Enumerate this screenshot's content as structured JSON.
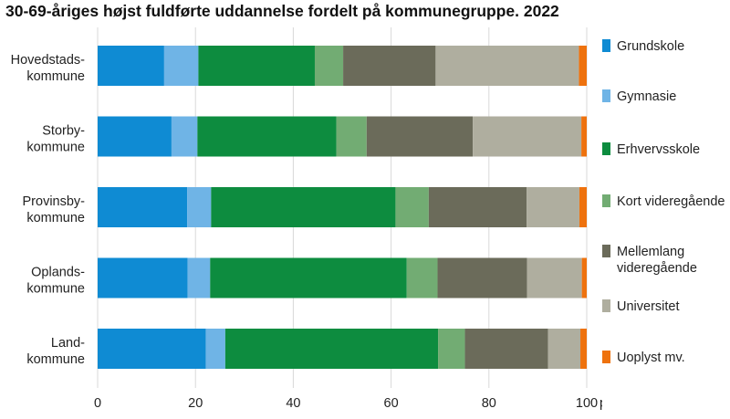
{
  "chart_data": {
    "type": "bar",
    "orientation": "horizontal",
    "stacked": true,
    "title": "30-69-åriges højst fuldførte uddannelse fordelt på kommunegruppe. 2022",
    "x_unit_label": "ptc.",
    "xlim": [
      0,
      100
    ],
    "x_ticks": [
      0,
      20,
      40,
      60,
      80,
      100
    ],
    "grid": "vertical",
    "legend_position": "right",
    "categories": [
      [
        "Hovedstads-",
        "kommune"
      ],
      [
        "Storby-",
        "kommune"
      ],
      [
        "Provinsby-",
        "kommune"
      ],
      [
        "Oplands-",
        "kommune"
      ],
      [
        "Land-",
        "kommune"
      ]
    ],
    "series": [
      {
        "name": "Grundskole",
        "lines": [
          "Grundskole"
        ],
        "color": "#0f8bd3",
        "values": [
          13.6,
          15.1,
          18.3,
          18.4,
          22.1
        ]
      },
      {
        "name": "Gymnasie",
        "lines": [
          "Gymnasie"
        ],
        "color": "#6fb4e6",
        "values": [
          7.0,
          5.3,
          4.9,
          4.6,
          4.0
        ]
      },
      {
        "name": "Erhvervsskole",
        "lines": [
          "Erhvervsskole"
        ],
        "color": "#0d8c3f",
        "values": [
          23.8,
          28.4,
          37.7,
          40.2,
          43.5
        ]
      },
      {
        "name": "Kort videregående",
        "lines": [
          "Kort videregående"
        ],
        "color": "#72ac73",
        "values": [
          5.8,
          6.2,
          6.8,
          6.3,
          5.5
        ]
      },
      {
        "name": "Mellemlang videregående",
        "lines": [
          "Mellemlang",
          "videregående"
        ],
        "color": "#6b6b5a",
        "values": [
          18.9,
          21.7,
          20.0,
          18.3,
          17.0
        ]
      },
      {
        "name": "Universitet",
        "lines": [
          "Universitet"
        ],
        "color": "#afae9f",
        "values": [
          29.3,
          22.2,
          10.8,
          11.2,
          6.6
        ]
      },
      {
        "name": "Uoplyst mv.",
        "lines": [
          "Uoplyst mv."
        ],
        "color": "#ee720e",
        "values": [
          1.6,
          1.1,
          1.5,
          1.0,
          1.3
        ]
      }
    ]
  }
}
